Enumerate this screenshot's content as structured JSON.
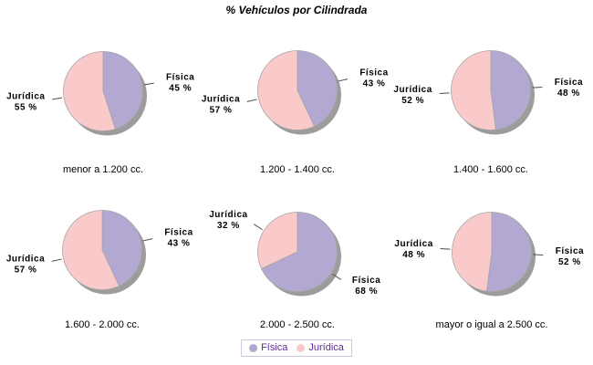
{
  "title": "% Vehículos por Cilindrada",
  "chart_data": {
    "type": "pie",
    "title": "% Vehículos por Cilindrada",
    "layout": "3x2 grid of small multiples, labels at slice mid-angle with leader lines, gray drop shadow",
    "series_names": [
      "Física",
      "Jurídica"
    ],
    "series_colors": [
      "#B2A8D2",
      "#FACACA"
    ],
    "shadow_color": "#9C9C9C",
    "outline_color": "#A6A6A6",
    "callout_line_color": "#4D4D4D",
    "value_suffix": " %",
    "legend_position": "bottom",
    "charts": [
      {
        "category": "menor a 1.200 cc.",
        "values": [
          45,
          55
        ]
      },
      {
        "category": "1.200 - 1.400 cc.",
        "values": [
          43,
          57
        ]
      },
      {
        "category": "1.400 - 1.600 cc.",
        "values": [
          48,
          52
        ]
      },
      {
        "category": "1.600 - 2.000 cc.",
        "values": [
          43,
          57
        ]
      },
      {
        "category": "2.000 - 2.500 cc.",
        "values": [
          68,
          32
        ]
      },
      {
        "category": "mayor o igual a 2.500 cc.",
        "values": [
          52,
          48
        ]
      }
    ]
  }
}
